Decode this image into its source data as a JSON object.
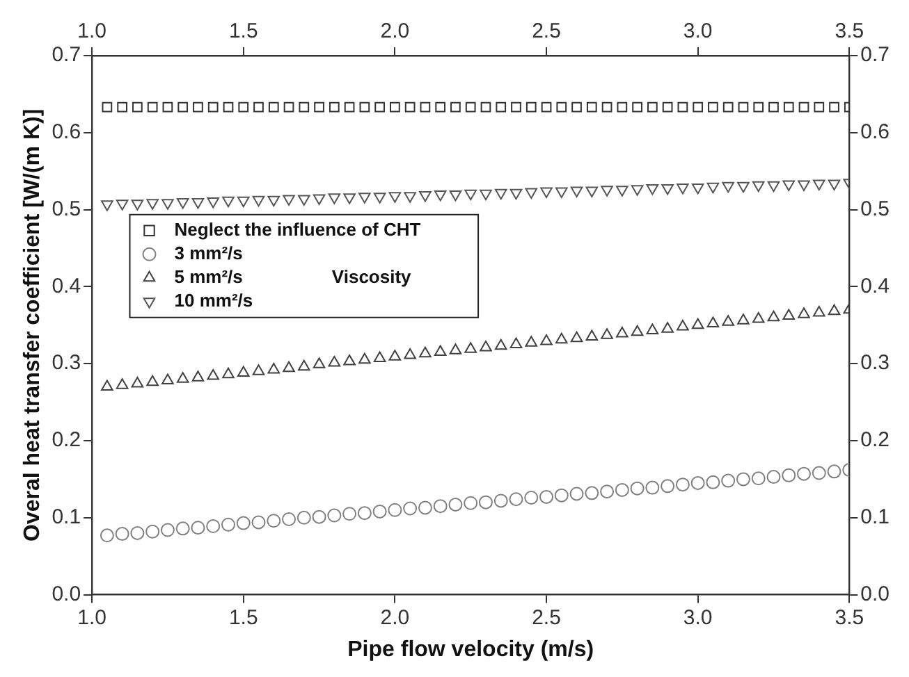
{
  "chart_data": {
    "type": "scatter",
    "xlabel": "Pipe flow velocity (m/s)",
    "ylabel": "Overal heat transfer coefficient [W/(m K)]",
    "x": [
      1.05,
      1.1,
      1.15,
      1.2,
      1.25,
      1.3,
      1.35,
      1.4,
      1.45,
      1.5,
      1.55,
      1.6,
      1.65,
      1.7,
      1.75,
      1.8,
      1.85,
      1.9,
      1.95,
      2.0,
      2.05,
      2.1,
      2.15,
      2.2,
      2.25,
      2.3,
      2.35,
      2.4,
      2.45,
      2.5,
      2.55,
      2.6,
      2.65,
      2.7,
      2.75,
      2.8,
      2.85,
      2.9,
      2.95,
      3.0,
      3.05,
      3.1,
      3.15,
      3.2,
      3.25,
      3.3,
      3.35,
      3.4,
      3.45,
      3.5
    ],
    "series": [
      {
        "name": "Neglect the influence of CHT",
        "color": "#333333",
        "marker": "square",
        "values": [
          0.633,
          0.633,
          0.633,
          0.633,
          0.633,
          0.633,
          0.633,
          0.633,
          0.633,
          0.633,
          0.633,
          0.633,
          0.633,
          0.633,
          0.633,
          0.633,
          0.633,
          0.633,
          0.633,
          0.633,
          0.633,
          0.633,
          0.633,
          0.633,
          0.633,
          0.633,
          0.633,
          0.633,
          0.633,
          0.633,
          0.633,
          0.633,
          0.633,
          0.633,
          0.633,
          0.633,
          0.633,
          0.633,
          0.633,
          0.633,
          0.633,
          0.633,
          0.633,
          0.633,
          0.633,
          0.633,
          0.633,
          0.633,
          0.633,
          0.633
        ]
      },
      {
        "name": "3 mm²/s",
        "color": "#808080",
        "marker": "circle",
        "values": [
          0.077,
          0.079,
          0.08,
          0.082,
          0.084,
          0.086,
          0.087,
          0.089,
          0.091,
          0.093,
          0.094,
          0.096,
          0.098,
          0.1,
          0.101,
          0.103,
          0.105,
          0.106,
          0.108,
          0.11,
          0.112,
          0.113,
          0.115,
          0.117,
          0.119,
          0.12,
          0.122,
          0.124,
          0.126,
          0.127,
          0.129,
          0.131,
          0.132,
          0.134,
          0.136,
          0.138,
          0.139,
          0.141,
          0.143,
          0.145,
          0.146,
          0.148,
          0.15,
          0.151,
          0.153,
          0.155,
          0.157,
          0.158,
          0.16,
          0.162
        ]
      },
      {
        "name": "5 mm²/s",
        "color": "#404040",
        "marker": "triangle",
        "values": [
          0.27,
          0.272,
          0.274,
          0.276,
          0.278,
          0.28,
          0.282,
          0.284,
          0.286,
          0.288,
          0.29,
          0.292,
          0.294,
          0.296,
          0.299,
          0.301,
          0.303,
          0.305,
          0.307,
          0.309,
          0.311,
          0.313,
          0.315,
          0.317,
          0.319,
          0.321,
          0.323,
          0.325,
          0.327,
          0.329,
          0.331,
          0.333,
          0.335,
          0.337,
          0.339,
          0.341,
          0.343,
          0.345,
          0.348,
          0.35,
          0.352,
          0.354,
          0.356,
          0.358,
          0.36,
          0.362,
          0.364,
          0.366,
          0.368,
          0.37
        ]
      },
      {
        "name": "10 mm²/s",
        "color": "#555555",
        "marker": "triangle-down",
        "values": [
          0.507,
          0.508,
          0.508,
          0.509,
          0.509,
          0.51,
          0.51,
          0.511,
          0.512,
          0.512,
          0.513,
          0.513,
          0.514,
          0.514,
          0.515,
          0.516,
          0.516,
          0.517,
          0.517,
          0.518,
          0.518,
          0.519,
          0.52,
          0.52,
          0.521,
          0.521,
          0.522,
          0.522,
          0.523,
          0.524,
          0.524,
          0.525,
          0.525,
          0.526,
          0.526,
          0.527,
          0.528,
          0.528,
          0.529,
          0.529,
          0.53,
          0.531,
          0.531,
          0.532,
          0.532,
          0.533,
          0.533,
          0.534,
          0.534,
          0.535
        ]
      }
    ],
    "annotations": [
      "Viscosity"
    ],
    "legend": "top left",
    "grid": false,
    "xlim": [
      1.0,
      3.5
    ],
    "xticks": [
      {
        "value": 1.0,
        "label": "1.0"
      },
      1.5,
      {
        "value": 2.0,
        "label": "2.0"
      },
      2.5,
      {
        "value": 3.0,
        "label": "3.0"
      },
      3.5
    ],
    "x2lim": [
      1.0,
      3.5
    ],
    "x2ticks": [
      {
        "value": 1.0,
        "label": "1.0"
      },
      1.5,
      {
        "value": 2.0,
        "label": "2.0"
      },
      2.5,
      {
        "value": 3.0,
        "label": "3.0"
      },
      3.5
    ],
    "ylim": [
      0.0,
      0.7
    ],
    "yticks": [
      {
        "value": 0.0,
        "label": "0.0"
      },
      0.1,
      0.2,
      0.3,
      0.4,
      0.5,
      0.6,
      0.7
    ],
    "y2lim": [
      0.0,
      0.7
    ],
    "y2ticks": [
      {
        "value": 0.0,
        "label": "0.0"
      },
      0.1,
      0.2,
      0.3,
      0.4,
      0.5,
      0.6,
      0.7
    ]
  }
}
